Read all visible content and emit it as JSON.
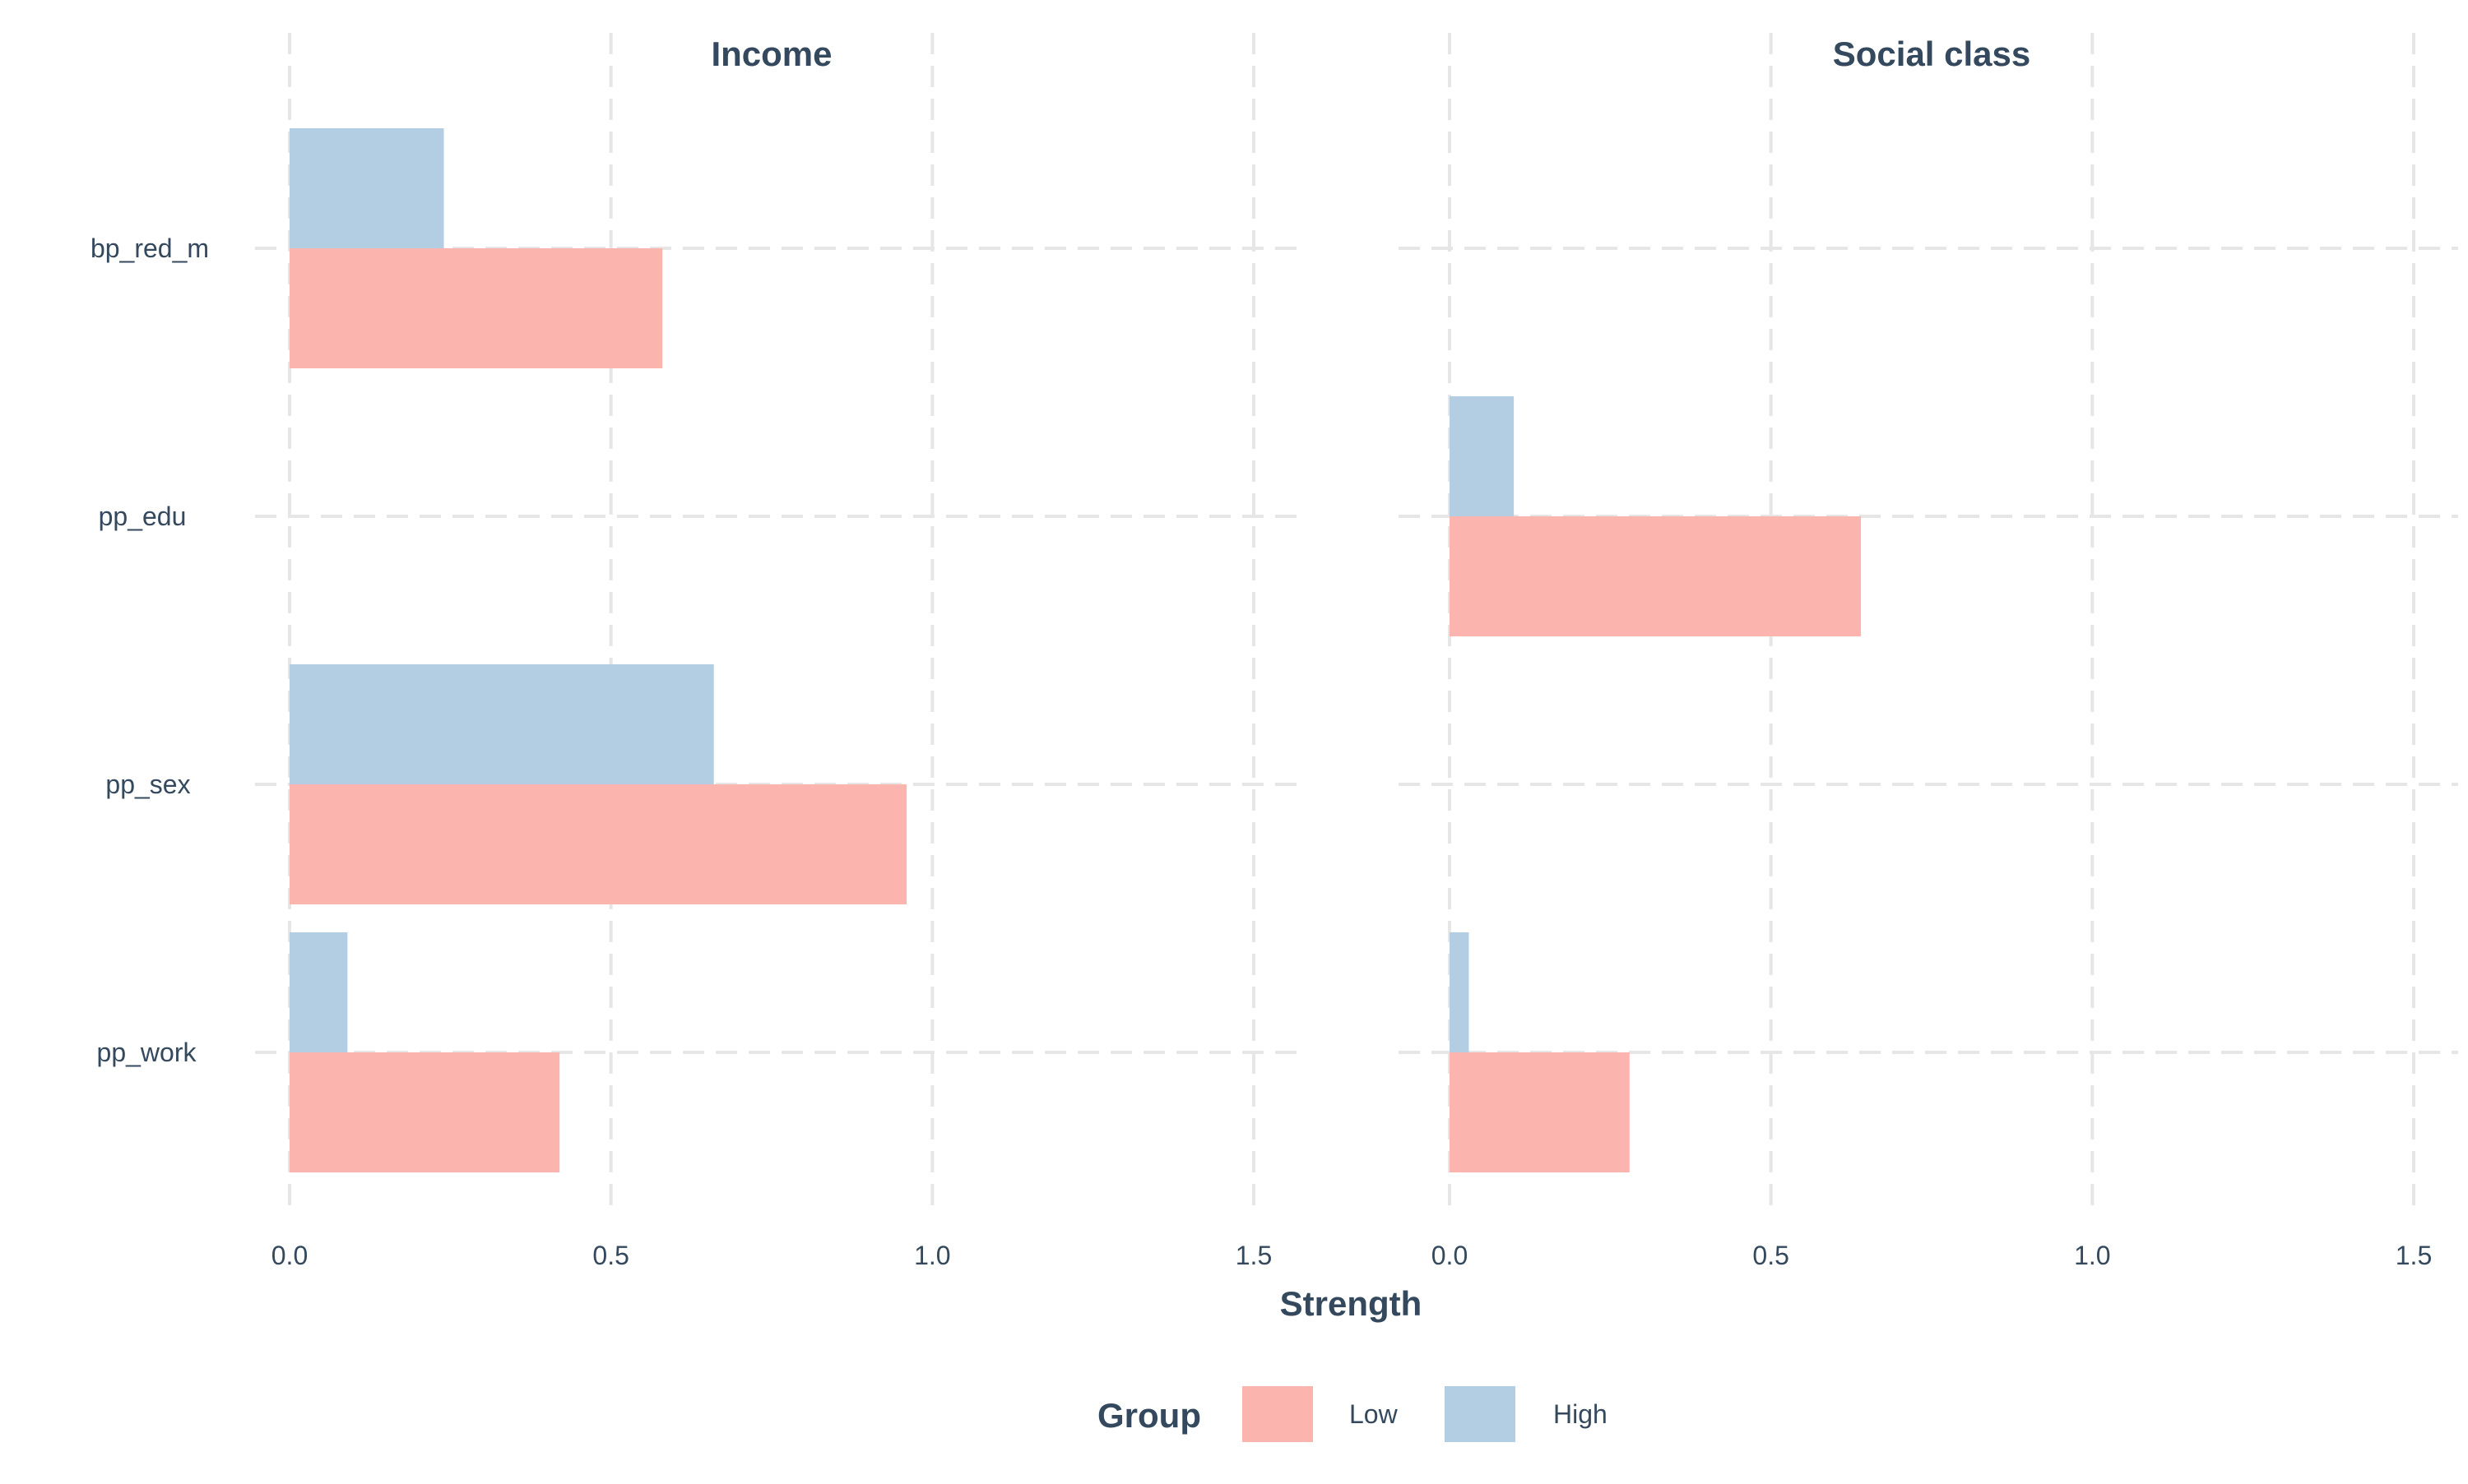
{
  "chart_data": {
    "type": "bar",
    "orientation": "horizontal",
    "categories": [
      "bp_red_m",
      "pp_edu",
      "pp_sex",
      "pp_work"
    ],
    "xlabel": "Strength",
    "xlim": [
      0,
      1.5
    ],
    "x_ticks": [
      "0.0",
      "0.5",
      "1.0",
      "1.5"
    ],
    "grid": true,
    "legend": {
      "title": "Group",
      "placement": "bottom",
      "entries": [
        {
          "name": "Low",
          "color": "#fbb4ae"
        },
        {
          "name": "High",
          "color": "#b3cde3"
        }
      ]
    },
    "panels": [
      {
        "title": "Income",
        "series": [
          {
            "name": "Low",
            "color": "#fbb4ae",
            "values": [
              0.58,
              0,
              0.96,
              0.42
            ]
          },
          {
            "name": "High",
            "color": "#b3cde3",
            "values": [
              0.24,
              0,
              0.66,
              0.09
            ]
          }
        ]
      },
      {
        "title": "Social class",
        "series": [
          {
            "name": "Low",
            "color": "#fbb4ae",
            "values": [
              0,
              0.64,
              0,
              0.28
            ]
          },
          {
            "name": "High",
            "color": "#b3cde3",
            "values": [
              0,
              0.1,
              0,
              0.03
            ]
          }
        ]
      }
    ]
  }
}
